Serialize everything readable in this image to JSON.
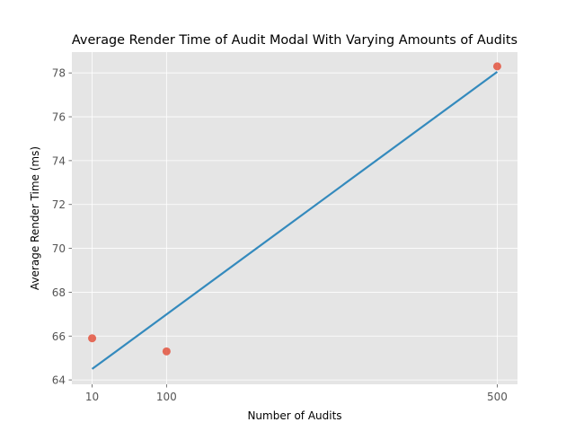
{
  "chart_data": {
    "type": "scatter",
    "title": "Average Render Time of Audit Modal With Varying Amounts of Audits",
    "xlabel": "Number of Audits",
    "ylabel": "Average Render Time (ms)",
    "x_ticks": [
      10,
      100,
      500
    ],
    "y_ticks": [
      64,
      66,
      68,
      70,
      72,
      74,
      76,
      78
    ],
    "xlim": [
      -14.5,
      524.5
    ],
    "ylim": [
      63.8,
      78.95
    ],
    "grid": true,
    "legend": "none",
    "series": [
      {
        "kind": "points",
        "x": [
          10,
          100,
          500
        ],
        "y": [
          65.9,
          65.3,
          78.3
        ],
        "color": "#E24A33"
      },
      {
        "kind": "fit-line",
        "x": [
          10,
          500
        ],
        "y": [
          64.5,
          78.05
        ],
        "color": "#348ABD"
      }
    ],
    "background_color": "#E5E5E5",
    "grid_color": "#FFFFFF",
    "tick_label_color": "#555555"
  }
}
